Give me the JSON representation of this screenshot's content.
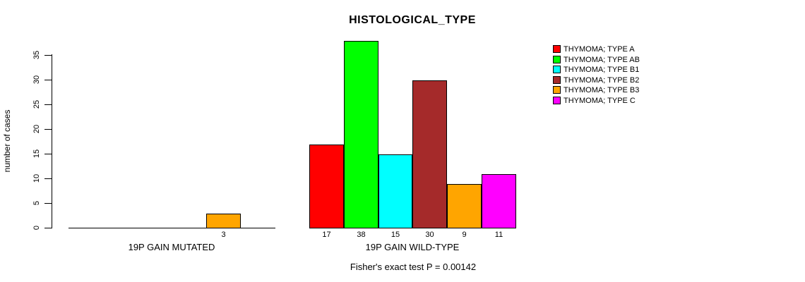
{
  "chart_data": {
    "type": "bar",
    "title": "HISTOLOGICAL_TYPE",
    "ylabel": "number of cases",
    "xlabel": "",
    "yticks": [
      0,
      5,
      10,
      15,
      20,
      25,
      30,
      35
    ],
    "ylim": [
      0,
      38
    ],
    "grid": false,
    "legend_position": "right",
    "categories": [
      "19P GAIN MUTATED",
      "19P GAIN WILD-TYPE"
    ],
    "series": [
      {
        "name": "THYMOMA; TYPE A",
        "color": "#FF0000",
        "values": [
          0,
          17
        ]
      },
      {
        "name": "THYMOMA; TYPE AB",
        "color": "#00FF00",
        "values": [
          0,
          38
        ]
      },
      {
        "name": "THYMOMA; TYPE B1",
        "color": "#00FFFF",
        "values": [
          0,
          15
        ]
      },
      {
        "name": "THYMOMA; TYPE B2",
        "color": "#A52A2A",
        "values": [
          0,
          30
        ]
      },
      {
        "name": "THYMOMA; TYPE B3",
        "color": "#FFA500",
        "values": [
          3,
          9
        ]
      },
      {
        "name": "THYMOMA; TYPE C",
        "color": "#FF00FF",
        "values": [
          0,
          11
        ]
      }
    ],
    "bar_value_labels_shown_for_nonzero_only": true,
    "annotation": "Fisher's exact test P = 0.00142",
    "axis_color": "#000000",
    "background_color": "#FFFFFF"
  }
}
